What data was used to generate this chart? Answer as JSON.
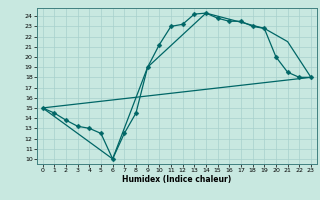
{
  "xlabel": "Humidex (Indice chaleur)",
  "xlim": [
    -0.5,
    23.5
  ],
  "ylim": [
    9.5,
    24.8
  ],
  "xticks": [
    0,
    1,
    2,
    3,
    4,
    5,
    6,
    7,
    8,
    9,
    10,
    11,
    12,
    13,
    14,
    15,
    16,
    17,
    18,
    19,
    20,
    21,
    22,
    23
  ],
  "yticks": [
    10,
    11,
    12,
    13,
    14,
    15,
    16,
    17,
    18,
    19,
    20,
    21,
    22,
    23,
    24
  ],
  "bg_color": "#c8e8e0",
  "line_color": "#006666",
  "grid_color": "#a8d0cc",
  "curve1_x": [
    0,
    1,
    2,
    3,
    4,
    5,
    6,
    7,
    8,
    9,
    10,
    11,
    12,
    13,
    14,
    15,
    16,
    17,
    18,
    19,
    20,
    21,
    22,
    23
  ],
  "curve1_y": [
    15.0,
    14.5,
    13.8,
    13.2,
    13.0,
    12.5,
    10.0,
    12.5,
    14.5,
    19.0,
    21.2,
    23.0,
    23.2,
    24.2,
    24.3,
    23.8,
    23.5,
    23.5,
    23.0,
    22.8,
    20.0,
    18.5,
    18.0,
    18.0
  ],
  "curve2_x": [
    0,
    6,
    9,
    14,
    19,
    21,
    23
  ],
  "curve2_y": [
    15.0,
    10.0,
    19.0,
    24.3,
    22.8,
    21.5,
    18.0
  ],
  "curve3_x": [
    0,
    23
  ],
  "curve3_y": [
    15.0,
    18.0
  ]
}
